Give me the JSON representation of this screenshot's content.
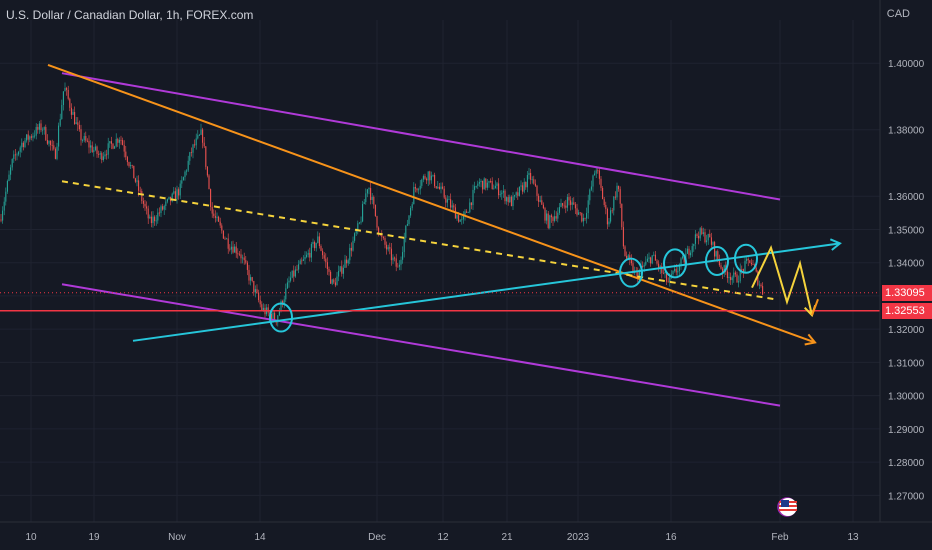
{
  "header": {
    "title": "U.S. Dollar / Canadian Dollar, 1h, FOREX.com",
    "currency": "CAD"
  },
  "price_labels": {
    "current": "1.33095",
    "current_color": "#f23645",
    "line": "1.32553",
    "line_color": "#f23645"
  },
  "badges": {
    "lightning": "lightning-icon",
    "flag": "us-flag-icon"
  },
  "chart_data": {
    "type": "candlestick",
    "title": "U.S. Dollar / Canadian Dollar, 1h, FOREX.com",
    "ylabel": "CAD",
    "ylim": [
      1.262,
      1.413
    ],
    "y_ticks": [
      1.4,
      1.38,
      1.36,
      1.35,
      1.34,
      1.33,
      1.32,
      1.31,
      1.3,
      1.29,
      1.28,
      1.27
    ],
    "x_ticks": [
      "10",
      "19",
      "Nov",
      "14",
      "Dec",
      "12",
      "21",
      "2023",
      "16",
      "Feb",
      "13"
    ],
    "colors": {
      "up": "#26a69a",
      "down": "#ef5350",
      "background": "#151924"
    },
    "price_path": [
      {
        "x": 0,
        "y": 1.353
      },
      {
        "x": 12,
        "y": 1.37
      },
      {
        "x": 22,
        "y": 1.376
      },
      {
        "x": 42,
        "y": 1.381
      },
      {
        "x": 55,
        "y": 1.372
      },
      {
        "x": 64,
        "y": 1.393
      },
      {
        "x": 80,
        "y": 1.378
      },
      {
        "x": 100,
        "y": 1.372
      },
      {
        "x": 120,
        "y": 1.378
      },
      {
        "x": 135,
        "y": 1.365
      },
      {
        "x": 150,
        "y": 1.352
      },
      {
        "x": 165,
        "y": 1.357
      },
      {
        "x": 180,
        "y": 1.362
      },
      {
        "x": 192,
        "y": 1.374
      },
      {
        "x": 202,
        "y": 1.379
      },
      {
        "x": 212,
        "y": 1.355
      },
      {
        "x": 228,
        "y": 1.346
      },
      {
        "x": 240,
        "y": 1.343
      },
      {
        "x": 250,
        "y": 1.335
      },
      {
        "x": 262,
        "y": 1.326
      },
      {
        "x": 276,
        "y": 1.323
      },
      {
        "x": 290,
        "y": 1.335
      },
      {
        "x": 305,
        "y": 1.341
      },
      {
        "x": 318,
        "y": 1.347
      },
      {
        "x": 333,
        "y": 1.333
      },
      {
        "x": 348,
        "y": 1.342
      },
      {
        "x": 360,
        "y": 1.352
      },
      {
        "x": 368,
        "y": 1.364
      },
      {
        "x": 380,
        "y": 1.348
      },
      {
        "x": 398,
        "y": 1.338
      },
      {
        "x": 414,
        "y": 1.362
      },
      {
        "x": 428,
        "y": 1.367
      },
      {
        "x": 442,
        "y": 1.361
      },
      {
        "x": 462,
        "y": 1.352
      },
      {
        "x": 478,
        "y": 1.364
      },
      {
        "x": 495,
        "y": 1.363
      },
      {
        "x": 512,
        "y": 1.358
      },
      {
        "x": 530,
        "y": 1.366
      },
      {
        "x": 548,
        "y": 1.352
      },
      {
        "x": 568,
        "y": 1.359
      },
      {
        "x": 584,
        "y": 1.353
      },
      {
        "x": 596,
        "y": 1.369
      },
      {
        "x": 608,
        "y": 1.352
      },
      {
        "x": 618,
        "y": 1.364
      },
      {
        "x": 624,
        "y": 1.343
      },
      {
        "x": 636,
        "y": 1.336
      },
      {
        "x": 652,
        "y": 1.342
      },
      {
        "x": 668,
        "y": 1.334
      },
      {
        "x": 684,
        "y": 1.341
      },
      {
        "x": 698,
        "y": 1.349
      },
      {
        "x": 710,
        "y": 1.347
      },
      {
        "x": 722,
        "y": 1.338
      },
      {
        "x": 736,
        "y": 1.335
      },
      {
        "x": 750,
        "y": 1.341
      },
      {
        "x": 763,
        "y": 1.331
      }
    ],
    "overlays": {
      "upper_channel": {
        "color": "#b03ad8",
        "points": [
          [
            62,
            1.397
          ],
          [
            780,
            1.359
          ]
        ]
      },
      "lower_channel": {
        "color": "#b03ad8",
        "points": [
          [
            62,
            1.3335
          ],
          [
            780,
            1.297
          ]
        ]
      },
      "orange_trendline": {
        "color": "#f7931a",
        "points": [
          [
            48,
            1.3995
          ],
          [
            815,
            1.316
          ]
        ]
      },
      "yellow_dashed": {
        "color": "#f5d33c",
        "points": [
          [
            62,
            1.3645
          ],
          [
            775,
            1.329
          ]
        ]
      },
      "cyan_trendline": {
        "color": "#26c6da",
        "points": [
          [
            133,
            1.3165
          ],
          [
            840,
            1.3458
          ]
        ]
      },
      "support_line": {
        "color": "#f23645",
        "value": 1.32553
      },
      "current_price_line": {
        "color": "#f23645",
        "value": 1.33095
      },
      "circles": [
        {
          "x": 281,
          "y": 1.3235
        },
        {
          "x": 631,
          "y": 1.337
        },
        {
          "x": 675,
          "y": 1.3398
        },
        {
          "x": 717,
          "y": 1.3405
        },
        {
          "x": 746,
          "y": 1.3412
        }
      ],
      "projection_yellow": {
        "color": "#f5d33c",
        "points": [
          [
            752,
            1.3325
          ],
          [
            771,
            1.3445
          ],
          [
            787,
            1.3282
          ],
          [
            800,
            1.3398
          ],
          [
            812,
            1.3242
          ]
        ]
      },
      "projection_small": {
        "color": "#f7931a",
        "points": [
          [
            812,
            1.3242
          ],
          [
            818,
            1.329
          ]
        ]
      }
    }
  }
}
